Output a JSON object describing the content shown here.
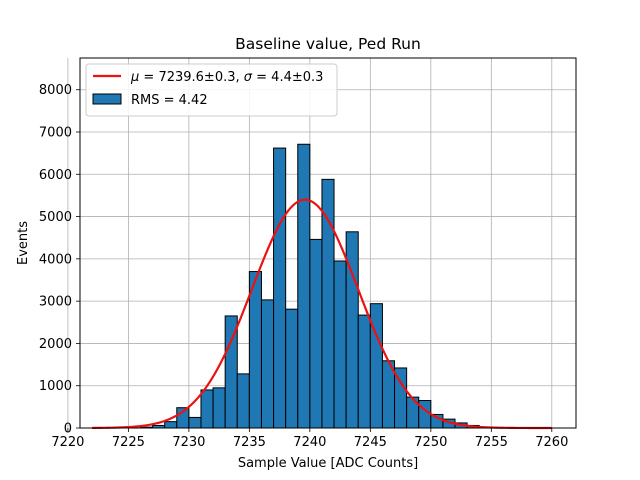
{
  "chart_data": {
    "type": "bar",
    "title": "Baseline value, Ped Run",
    "xlabel": "Sample Value [ADC Counts]",
    "ylabel": "Events",
    "xlim": [
      7221,
      7262
    ],
    "ylim": [
      0,
      8750
    ],
    "xticks": [
      7220,
      7225,
      7230,
      7235,
      7240,
      7245,
      7250,
      7255,
      7260
    ],
    "yticks": [
      0,
      1000,
      2000,
      3000,
      4000,
      5000,
      6000,
      7000,
      8000
    ],
    "grid": true,
    "legend_position": "upper-left",
    "bin_width": 1,
    "histogram": {
      "name": "RMS = 4.42",
      "color": "#1f77b4",
      "edgecolor": "#000000",
      "bins": [
        7226,
        7227,
        7228,
        7229,
        7230,
        7231,
        7232,
        7233,
        7234,
        7235,
        7236,
        7237,
        7238,
        7239,
        7240,
        7241,
        7242,
        7243,
        7244,
        7245,
        7246,
        7247,
        7248,
        7249,
        7250,
        7251,
        7252,
        7253,
        7254
      ],
      "values": [
        20,
        60,
        150,
        480,
        250,
        900,
        950,
        2650,
        1280,
        3700,
        3030,
        6620,
        2810,
        6710,
        4460,
        5880,
        3950,
        4640,
        2670,
        2940,
        1590,
        1420,
        730,
        650,
        320,
        210,
        120,
        60,
        20
      ]
    },
    "fit": {
      "name": "μ = 7239.6±0.3, σ = 4.4±0.3",
      "label_parts": [
        "μ",
        " = 7239.6±0.3, ",
        "σ",
        " = 4.4±0.3"
      ],
      "color": "#ee1111",
      "mu": 7239.6,
      "sigma": 4.4,
      "amplitude": 5400,
      "x_range": [
        7222,
        7260
      ]
    }
  }
}
